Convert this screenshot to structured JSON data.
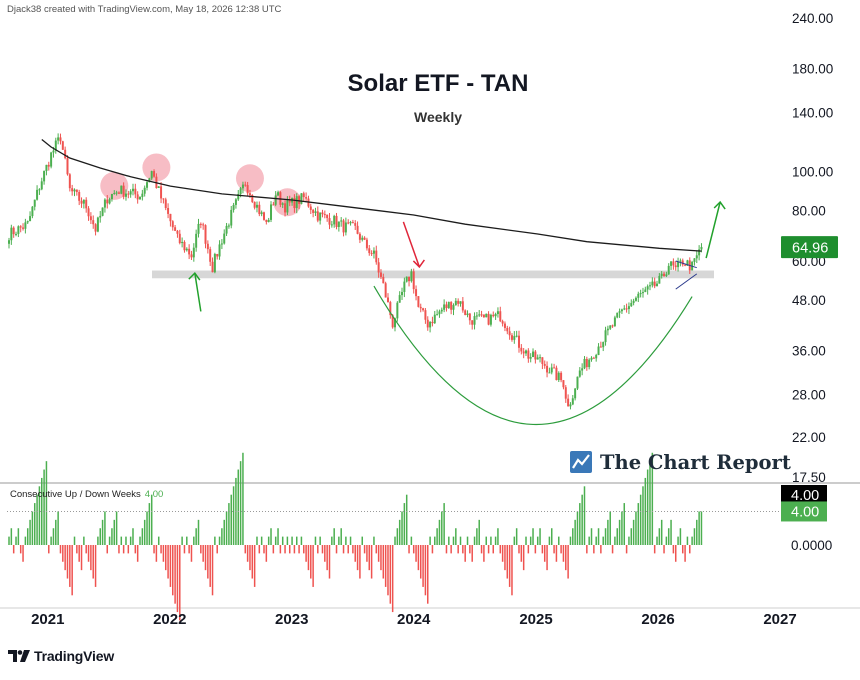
{
  "header": {
    "credit": "Djack38 created with TradingView.com, May 18, 2026 12:38 UTC"
  },
  "brand": {
    "name": "The Chart Report"
  },
  "footer": {
    "logo_text": "TradingView"
  },
  "indicator": {
    "name": "Consecutive Up / Down Weeks",
    "value": "4.00"
  },
  "colors": {
    "up": "#4caf50",
    "down": "#ef5350",
    "ma": "#1c1c1c",
    "support": "#d7d7d7",
    "arrow_up": "#22a12c",
    "arrow_down": "#e0263a",
    "arc": "#2c9c3c",
    "resistance_circle": "#f4a7b2",
    "badge_price": "#1e8e2e",
    "badge_black": "#000000"
  },
  "chart_data": [
    {
      "type": "candlestick",
      "title": "Solar ETF - TAN",
      "subtitle": "Weekly",
      "last_price": "64.96",
      "y_scale": "log",
      "ylim": [
        17.5,
        240
      ],
      "y_ticks": [
        "240.00",
        "180.00",
        "140.00",
        "100.00",
        "80.00",
        "60.00",
        "48.00",
        "36.00",
        "28.00",
        "22.00",
        "17.50"
      ],
      "x_ticks": [
        "2021",
        "2022",
        "2023",
        "2024",
        "2025",
        "2026",
        "2027"
      ],
      "x_range": [
        "2020-09",
        "2027-01"
      ],
      "close_path": [
        [
          "2020-09-07",
          70
        ],
        [
          "2020-11-02",
          74
        ],
        [
          "2020-12-07",
          92
        ],
        [
          "2021-01-11",
          110
        ],
        [
          "2021-02-08",
          122
        ],
        [
          "2021-03-08",
          90
        ],
        [
          "2021-04-26",
          82
        ],
        [
          "2021-05-24",
          72
        ],
        [
          "2021-06-28",
          86
        ],
        [
          "2021-08-02",
          90
        ],
        [
          "2021-10-04",
          87
        ],
        [
          "2021-11-08",
          100
        ],
        [
          "2021-12-06",
          86
        ],
        [
          "2022-01-24",
          68
        ],
        [
          "2022-03-07",
          62
        ],
        [
          "2022-04-04",
          76
        ],
        [
          "2022-05-09",
          58
        ],
        [
          "2022-06-06",
          68
        ],
        [
          "2022-07-04",
          78
        ],
        [
          "2022-08-15",
          94
        ],
        [
          "2022-09-19",
          82
        ],
        [
          "2022-10-17",
          74
        ],
        [
          "2022-11-14",
          88
        ],
        [
          "2022-12-12",
          82
        ],
        [
          "2023-02-06",
          86
        ],
        [
          "2023-03-20",
          78
        ],
        [
          "2023-05-01",
          76
        ],
        [
          "2023-06-05",
          73
        ],
        [
          "2023-07-10",
          72
        ],
        [
          "2023-08-07",
          66
        ],
        [
          "2023-09-04",
          62
        ],
        [
          "2023-10-02",
          52
        ],
        [
          "2023-10-30",
          42
        ],
        [
          "2023-12-04",
          52
        ],
        [
          "2023-12-25",
          56
        ],
        [
          "2024-01-15",
          46
        ],
        [
          "2024-02-12",
          42
        ],
        [
          "2024-04-01",
          46
        ],
        [
          "2024-05-13",
          48
        ],
        [
          "2024-06-17",
          43
        ],
        [
          "2024-08-05",
          43
        ],
        [
          "2024-09-16",
          44
        ],
        [
          "2024-11-04",
          38
        ],
        [
          "2024-12-09",
          35
        ],
        [
          "2025-01-13",
          34
        ],
        [
          "2025-02-17",
          32
        ],
        [
          "2025-03-24",
          30
        ],
        [
          "2025-04-07",
          26
        ],
        [
          "2025-05-12",
          32
        ],
        [
          "2025-06-16",
          35
        ],
        [
          "2025-08-04",
          40
        ],
        [
          "2025-09-15",
          45
        ],
        [
          "2025-11-03",
          49
        ],
        [
          "2025-12-08",
          51
        ],
        [
          "2026-01-12",
          54
        ],
        [
          "2026-02-02",
          59
        ],
        [
          "2026-02-23",
          57
        ],
        [
          "2026-03-16",
          60
        ],
        [
          "2026-04-13",
          58
        ],
        [
          "2026-05-11",
          65
        ]
      ],
      "moving_average": [
        [
          "2020-12-14",
          120
        ],
        [
          "2021-01-11",
          115
        ],
        [
          "2021-03-08",
          108
        ],
        [
          "2021-06-07",
          102
        ],
        [
          "2021-09-06",
          97
        ],
        [
          "2022-01-03",
          92
        ],
        [
          "2022-06-06",
          88
        ],
        [
          "2023-01-02",
          85
        ],
        [
          "2023-06-05",
          82
        ],
        [
          "2024-01-01",
          78
        ],
        [
          "2024-06-03",
          74
        ],
        [
          "2025-01-06",
          70
        ],
        [
          "2025-06-02",
          67
        ],
        [
          "2026-01-05",
          64.5
        ],
        [
          "2026-05-11",
          63.5
        ]
      ],
      "support_zone": [
        55,
        56.5
      ],
      "resistance_touches": [
        "2021-07-19",
        "2021-11-22",
        "2022-08-29",
        "2022-12-19"
      ],
      "annotations": [
        {
          "type": "arrow-up",
          "date": "2022-04-04",
          "from": 45,
          "to": 56
        },
        {
          "type": "arrow-down",
          "date": "2023-12-25",
          "from": 75,
          "to": 58
        },
        {
          "type": "arrow-up",
          "date": "2026-05-25",
          "from": 61,
          "to": 84
        },
        {
          "type": "triangle",
          "from": "2026-02-23",
          "to": "2026-04-27",
          "high": 60,
          "low": 53.5
        },
        {
          "type": "cup-arc",
          "from": "2023-09-04",
          "to": "2026-04-13",
          "depth": 23.5
        }
      ]
    },
    {
      "type": "bar",
      "title": "Consecutive Up / Down Weeks",
      "last_value": "4.00",
      "ylim": [
        -7,
        6
      ],
      "y_ticks": [
        "0.0000"
      ],
      "reference_line": 4
    }
  ]
}
